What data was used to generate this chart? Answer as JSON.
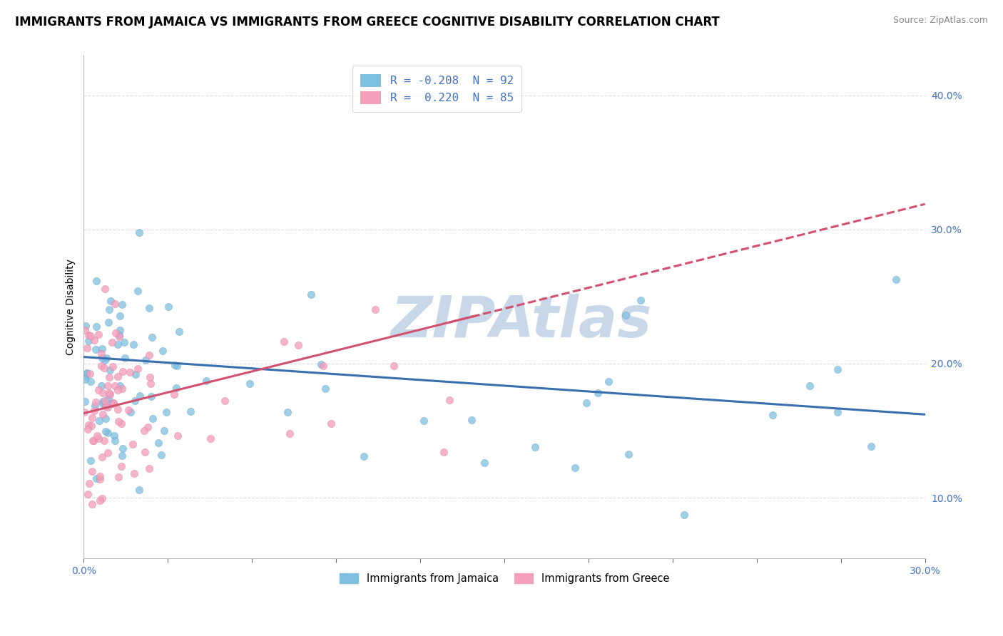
{
  "title": "IMMIGRANTS FROM JAMAICA VS IMMIGRANTS FROM GREECE COGNITIVE DISABILITY CORRELATION CHART",
  "source": "Source: ZipAtlas.com",
  "ylabel": "Cognitive Disability",
  "ytick_values": [
    0.1,
    0.2,
    0.3,
    0.4
  ],
  "xlim": [
    0.0,
    0.3
  ],
  "ylim": [
    0.055,
    0.43
  ],
  "legend1_label": "R = -0.208  N = 92",
  "legend2_label": "R =  0.220  N = 85",
  "legend_bottom_label1": "Immigrants from Jamaica",
  "legend_bottom_label2": "Immigrants from Greece",
  "color_blue": "#7fbfdf",
  "color_pink": "#f5a0bb",
  "trendline_blue": "#3a6faf",
  "trendline_pink": "#d45070",
  "jamaica_R": -0.208,
  "jamaica_N": 92,
  "greece_R": 0.22,
  "greece_N": 85,
  "title_fontsize": 12,
  "axis_label_fontsize": 10,
  "tick_fontsize": 10,
  "source_fontsize": 9,
  "background_color": "#ffffff",
  "watermark_text": "ZIPAtlas",
  "watermark_color": "#c8d8e8",
  "watermark_fontsize": 58,
  "grid_color": "#dddddd"
}
